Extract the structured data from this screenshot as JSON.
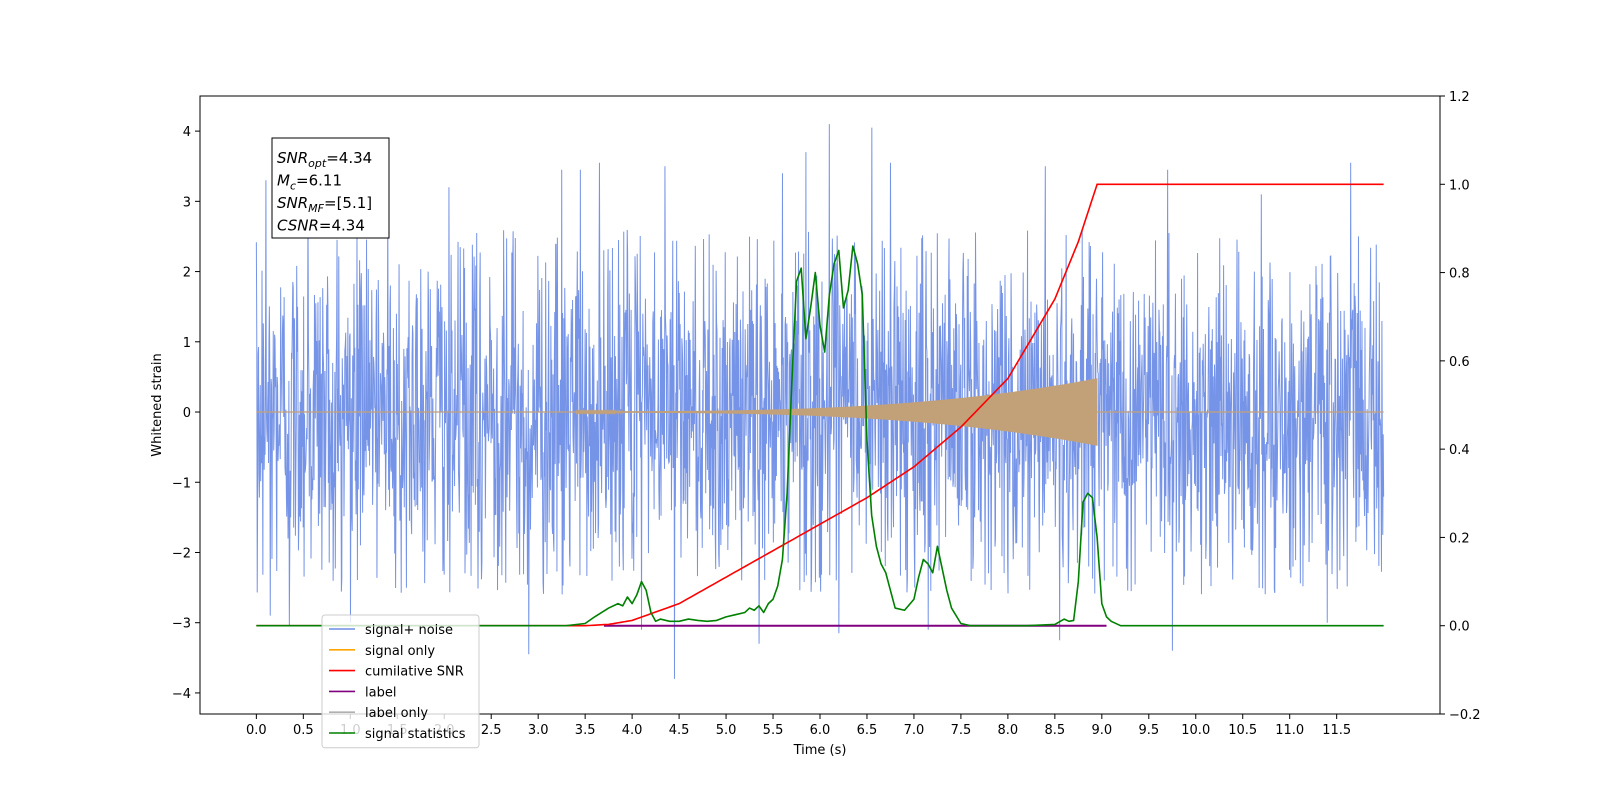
{
  "chart_data": {
    "type": "line",
    "xlabel": "Time (s)",
    "ylabel_left": "Whitened strain",
    "ylabel_right": "",
    "xlim": [
      -0.6,
      12.6
    ],
    "ylim_left": [
      -4.3,
      4.5
    ],
    "ylim_right": [
      -0.2,
      1.2
    ],
    "x_ticks": [
      0.0,
      0.5,
      1.0,
      1.5,
      2.0,
      2.5,
      3.0,
      3.5,
      4.0,
      4.5,
      5.0,
      5.5,
      6.0,
      6.5,
      7.0,
      7.5,
      8.0,
      8.5,
      9.0,
      9.5,
      10.0,
      10.5,
      11.0,
      11.5
    ],
    "x_tick_labels": [
      "0.0",
      "0.5",
      "1.0",
      "1.5",
      "2.0",
      "2.5",
      "3.0",
      "3.5",
      "4.0",
      "4.5",
      "5.0",
      "5.5",
      "6.0",
      "6.5",
      "7.0",
      "7.5",
      "8.0",
      "8.5",
      "9.0",
      "9.5",
      "10.0",
      "10.5",
      "11.0",
      "11.5"
    ],
    "y_left_ticks": [
      -4,
      -3,
      -2,
      -1,
      0,
      1,
      2,
      3,
      4
    ],
    "y_left_tick_labels": [
      "−4",
      "−3",
      "−2",
      "−1",
      "0",
      "1",
      "2",
      "3",
      "4"
    ],
    "y_right_ticks": [
      -0.2,
      0.0,
      0.2,
      0.4,
      0.6,
      0.8,
      1.0,
      1.2
    ],
    "y_right_tick_labels": [
      "−0.2",
      "0.0",
      "0.2",
      "0.4",
      "0.6",
      "0.8",
      "1.0",
      "1.2"
    ],
    "legend_location": "lower-left",
    "grid": false,
    "annotation": {
      "lines": [
        {
          "base": "SNR",
          "sub": "opt",
          "rest": "=4.34"
        },
        {
          "base": "M",
          "sub": "c",
          "rest": "=6.11"
        },
        {
          "base": "SNR",
          "sub": "MF",
          "rest": "=[5.1]"
        },
        {
          "base": "CSNR",
          "sub": "",
          "rest": "=4.34"
        }
      ]
    },
    "series": [
      {
        "name": "signal+ noise",
        "axis": "left",
        "color": "#6f8ee6",
        "t_range": [
          0.0,
          12.0
        ],
        "envelope_typical": 1.5,
        "peaks": [
          {
            "t": 0.1,
            "v": 3.3
          },
          {
            "t": 0.15,
            "v": -2.9
          },
          {
            "t": 0.35,
            "v": -3.05
          },
          {
            "t": 0.55,
            "v": 3.0
          },
          {
            "t": 1.0,
            "v": -3.0
          },
          {
            "t": 1.4,
            "v": 3.05
          },
          {
            "t": 2.05,
            "v": 3.2
          },
          {
            "t": 2.9,
            "v": -3.45
          },
          {
            "t": 3.25,
            "v": 3.45
          },
          {
            "t": 3.45,
            "v": 3.45
          },
          {
            "t": 3.65,
            "v": 3.55
          },
          {
            "t": 4.1,
            "v": -3.1
          },
          {
            "t": 4.35,
            "v": 3.5
          },
          {
            "t": 4.45,
            "v": -3.8
          },
          {
            "t": 5.35,
            "v": -3.3
          },
          {
            "t": 5.6,
            "v": 3.4
          },
          {
            "t": 5.85,
            "v": 3.7
          },
          {
            "t": 6.1,
            "v": 4.1
          },
          {
            "t": 6.2,
            "v": -3.15
          },
          {
            "t": 6.55,
            "v": 4.05
          },
          {
            "t": 6.75,
            "v": 3.55
          },
          {
            "t": 7.15,
            "v": -3.1
          },
          {
            "t": 8.4,
            "v": 3.5
          },
          {
            "t": 8.55,
            "v": -3.25
          },
          {
            "t": 9.7,
            "v": 3.45
          },
          {
            "t": 9.75,
            "v": -3.4
          },
          {
            "t": 10.7,
            "v": 3.1
          },
          {
            "t": 11.4,
            "v": -3.0
          },
          {
            "t": 11.65,
            "v": 3.55
          }
        ]
      },
      {
        "name": "signal only",
        "axis": "left",
        "color": "#ffa500",
        "visible_color": "#c2a078",
        "chirp": {
          "t_start": 3.4,
          "t_merge": 8.95,
          "amp_start": 0.01,
          "amp_merge": 0.48,
          "t_end": 12.0
        }
      },
      {
        "name": "cumilative SNR",
        "axis": "right",
        "color": "#ff0000",
        "x": [
          0.0,
          3.5,
          3.75,
          4.0,
          4.5,
          5.0,
          5.5,
          6.0,
          6.5,
          7.0,
          7.5,
          8.0,
          8.5,
          8.75,
          8.95,
          9.0,
          12.0
        ],
        "y": [
          0.0,
          0.0,
          0.003,
          0.012,
          0.05,
          0.11,
          0.17,
          0.23,
          0.29,
          0.36,
          0.45,
          0.56,
          0.74,
          0.87,
          1.0,
          1.0,
          1.0
        ]
      },
      {
        "name": "label",
        "axis": "right",
        "color": "#800080",
        "x": [
          3.7,
          9.05
        ],
        "y": [
          0.0,
          0.0
        ]
      },
      {
        "name": "label only",
        "axis": "right",
        "color": "#b0b0b0",
        "x": [],
        "y": []
      },
      {
        "name": "signal statistics",
        "axis": "right",
        "color": "#008000",
        "x": [
          0.0,
          3.3,
          3.5,
          3.6,
          3.75,
          3.85,
          3.9,
          3.95,
          4.0,
          4.05,
          4.1,
          4.15,
          4.2,
          4.25,
          4.3,
          4.4,
          4.5,
          4.6,
          4.7,
          4.8,
          4.9,
          5.0,
          5.1,
          5.2,
          5.25,
          5.3,
          5.35,
          5.4,
          5.45,
          5.5,
          5.55,
          5.6,
          5.65,
          5.7,
          5.75,
          5.8,
          5.85,
          5.9,
          5.95,
          6.0,
          6.05,
          6.1,
          6.15,
          6.2,
          6.25,
          6.3,
          6.35,
          6.4,
          6.45,
          6.5,
          6.55,
          6.6,
          6.65,
          6.7,
          6.75,
          6.8,
          6.9,
          7.0,
          7.05,
          7.1,
          7.15,
          7.2,
          7.25,
          7.3,
          7.35,
          7.4,
          7.5,
          7.6,
          7.8,
          8.2,
          8.5,
          8.6,
          8.65,
          8.7,
          8.75,
          8.8,
          8.85,
          8.9,
          8.95,
          9.0,
          9.05,
          9.1,
          9.2,
          9.35,
          9.5,
          12.0
        ],
        "y": [
          0.0,
          0.0,
          0.005,
          0.02,
          0.04,
          0.05,
          0.045,
          0.065,
          0.05,
          0.07,
          0.1,
          0.08,
          0.03,
          0.01,
          0.015,
          0.01,
          0.01,
          0.015,
          0.012,
          0.01,
          0.012,
          0.02,
          0.025,
          0.03,
          0.04,
          0.035,
          0.045,
          0.03,
          0.05,
          0.06,
          0.09,
          0.15,
          0.3,
          0.55,
          0.78,
          0.81,
          0.65,
          0.72,
          0.8,
          0.68,
          0.62,
          0.75,
          0.82,
          0.85,
          0.72,
          0.76,
          0.86,
          0.82,
          0.75,
          0.42,
          0.25,
          0.18,
          0.14,
          0.12,
          0.08,
          0.04,
          0.035,
          0.06,
          0.11,
          0.15,
          0.14,
          0.12,
          0.18,
          0.13,
          0.08,
          0.04,
          0.005,
          0.0,
          0.0,
          0.0,
          0.003,
          0.015,
          0.01,
          0.012,
          0.1,
          0.28,
          0.3,
          0.29,
          0.2,
          0.05,
          0.02,
          0.01,
          0.0,
          0.0,
          0.0,
          0.0
        ]
      }
    ]
  }
}
